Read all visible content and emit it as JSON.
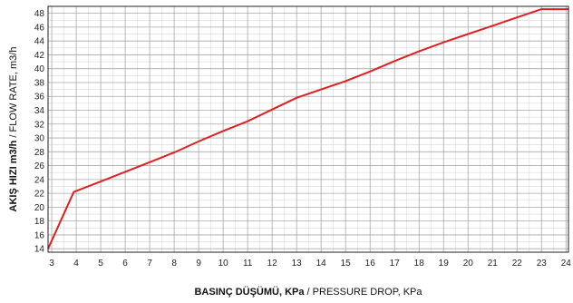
{
  "chart_data": {
    "type": "line",
    "xlabel": {
      "bold": "BASINÇ DÜŞÜMÜ, KPa",
      "sep": " / ",
      "rest": "PRESSURE DROP, KPa"
    },
    "ylabel": {
      "bold": "AKIŞ HIZI m3/h",
      "sep": " / ",
      "rest": "FLOW RATE, m3/h"
    },
    "xlim": [
      2.85,
      24.1
    ],
    "ylim": [
      13.5,
      49
    ],
    "xticks": [
      3,
      4,
      5,
      6,
      7,
      8,
      9,
      10,
      11,
      12,
      13,
      14,
      15,
      16,
      17,
      18,
      19,
      20,
      21,
      22,
      23,
      24
    ],
    "yticks": [
      14,
      16,
      18,
      20,
      22,
      24,
      26,
      28,
      30,
      32,
      34,
      36,
      38,
      40,
      42,
      44,
      46,
      48
    ],
    "grid": true,
    "line_color": "#e02020",
    "series": [
      {
        "x": [
          2.85,
          3.9,
          5,
          6,
          7,
          8,
          9,
          10,
          11,
          12,
          13,
          14,
          15,
          16,
          17,
          18,
          19,
          20,
          21,
          22,
          23,
          24.1
        ],
        "y": [
          14,
          22.2,
          23.7,
          25.1,
          26.5,
          27.9,
          29.5,
          31,
          32.4,
          34.1,
          35.8,
          37,
          38.2,
          39.6,
          41.1,
          42.5,
          43.8,
          45,
          46.2,
          47.4,
          48.6,
          48.6
        ]
      }
    ]
  }
}
